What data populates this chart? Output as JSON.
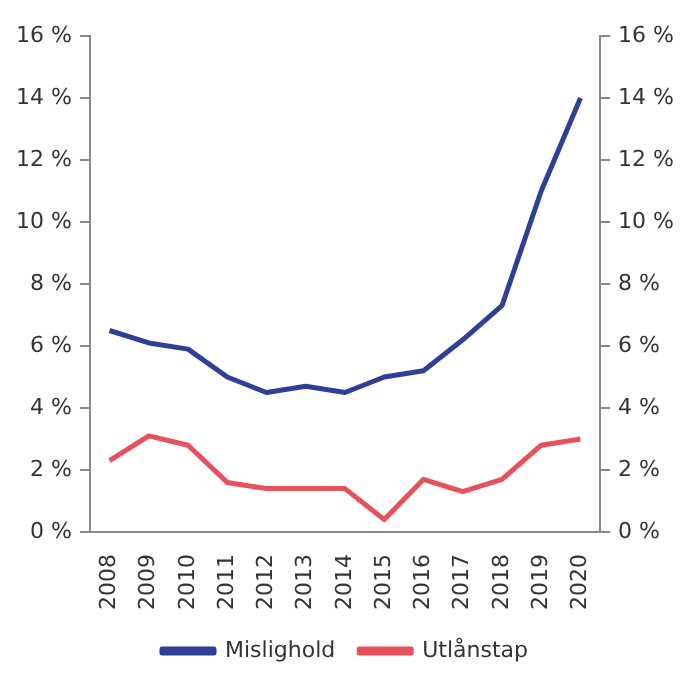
{
  "chart_data": {
    "type": "line",
    "categories": [
      "2008",
      "2009",
      "2010",
      "2011",
      "2012",
      "2013",
      "2014",
      "2015",
      "2016",
      "2017",
      "2018",
      "2019",
      "2020"
    ],
    "series": [
      {
        "name": "Mislighold",
        "color": "#2e3f96",
        "values": [
          6.5,
          6.1,
          5.9,
          5.0,
          4.5,
          4.7,
          4.5,
          5.0,
          5.2,
          6.2,
          7.3,
          11.0,
          14.0
        ]
      },
      {
        "name": "Utlånstap",
        "color": "#e8505b",
        "values": [
          2.3,
          3.1,
          2.8,
          1.6,
          1.4,
          1.4,
          1.4,
          0.4,
          1.7,
          1.3,
          1.7,
          2.8,
          3.0
        ]
      }
    ],
    "ylim": [
      0,
      16
    ],
    "yticks": [
      {
        "value": 0,
        "label": "0 %"
      },
      {
        "value": 2,
        "label": "2 %"
      },
      {
        "value": 4,
        "label": "4 %"
      },
      {
        "value": 6,
        "label": "6 %"
      },
      {
        "value": 8,
        "label": "8 %"
      },
      {
        "value": 10,
        "label": "10 %"
      },
      {
        "value": 12,
        "label": "12 %"
      },
      {
        "value": 14,
        "label": "14 %"
      },
      {
        "value": 16,
        "label": "16 %"
      }
    ],
    "y2lim": [
      0,
      16
    ],
    "y2ticks": [
      {
        "value": 0,
        "label": "0 %"
      },
      {
        "value": 2,
        "label": "2 %"
      },
      {
        "value": 4,
        "label": "4 %"
      },
      {
        "value": 6,
        "label": "6 %"
      },
      {
        "value": 8,
        "label": "8 %"
      },
      {
        "value": 10,
        "label": "10 %"
      },
      {
        "value": 12,
        "label": "12 %"
      },
      {
        "value": 14,
        "label": "14 %"
      },
      {
        "value": 16,
        "label": "16 %"
      }
    ],
    "grid": false,
    "legend": "bottom",
    "marker": "none",
    "line_style": "solid"
  }
}
